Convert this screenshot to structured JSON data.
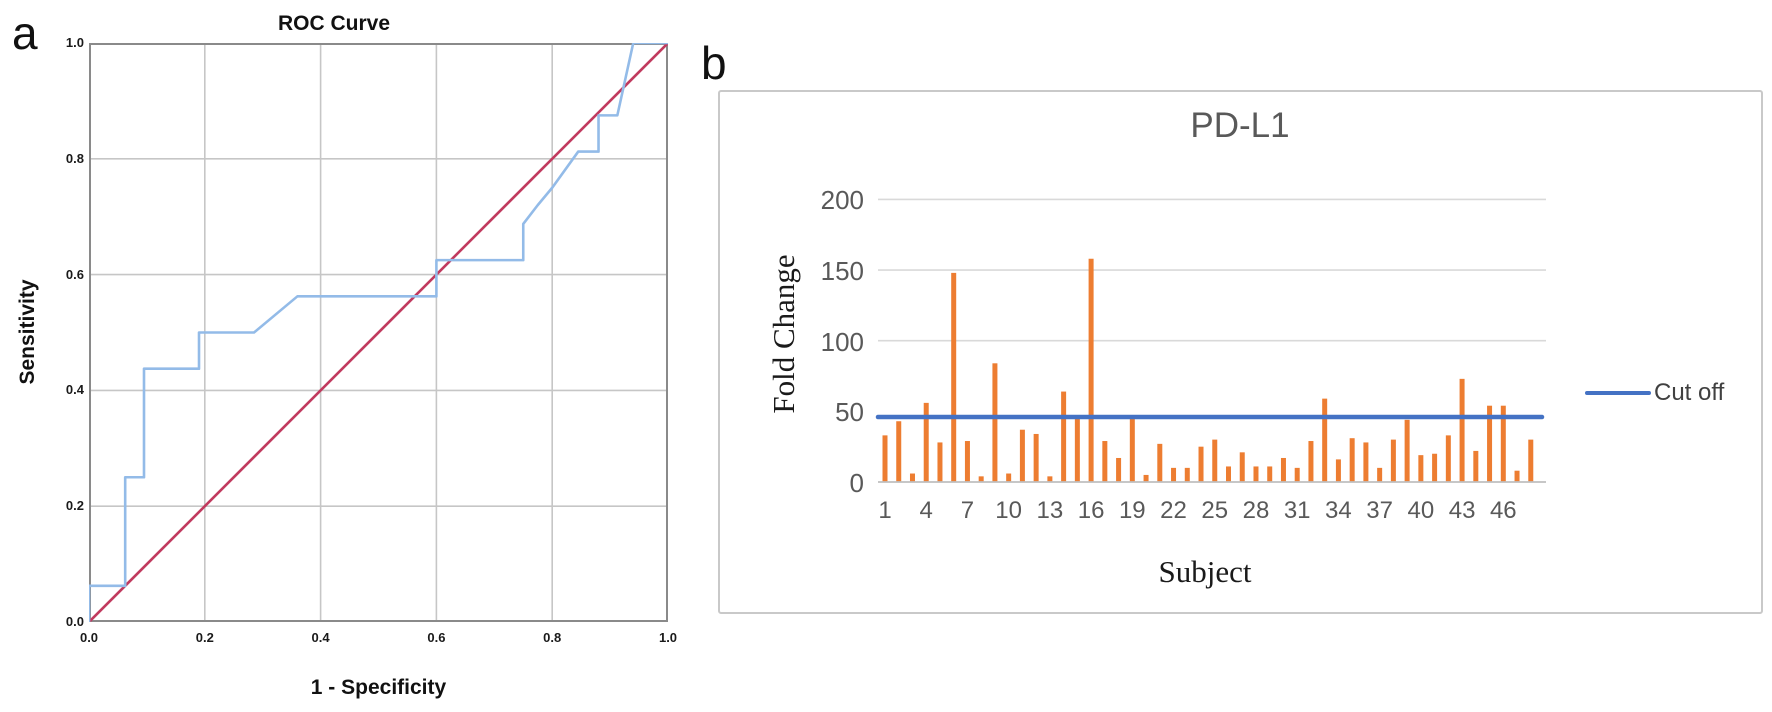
{
  "panel_a": {
    "label": "a",
    "title": "ROC Curve",
    "xlabel": "1 - Specificity",
    "ylabel": "Sensitivity",
    "x_ticks": [
      "0.0",
      "0.2",
      "0.4",
      "0.6",
      "0.8",
      "1.0"
    ],
    "y_ticks": [
      "0.0",
      "0.2",
      "0.4",
      "0.6",
      "0.8",
      "1.0"
    ],
    "colors": {
      "curve": "#93BBE8",
      "diagonal": "#C13A5E",
      "grid": "#c6c6c6",
      "border": "#8a8a8a"
    }
  },
  "panel_b": {
    "label": "b",
    "title": "PD-L1",
    "xlabel": "Subject",
    "ylabel": "Fold Change",
    "y_ticks": [
      "200",
      "150",
      "100",
      "50",
      "0"
    ],
    "x_ticks": [
      "1",
      "4",
      "7",
      "10",
      "13",
      "16",
      "19",
      "22",
      "25",
      "28",
      "31",
      "34",
      "37",
      "40",
      "43",
      "46"
    ],
    "legend_label": "Cut off",
    "colors": {
      "bar": "#ED7D31",
      "cutoff": "#4472C4",
      "grid": "#d9d9d9",
      "axis": "#bfbfbf"
    }
  },
  "chart_data": [
    {
      "type": "line",
      "title": "ROC Curve",
      "xlabel": "1 - Specificity",
      "ylabel": "Sensitivity",
      "xlim": [
        0,
        1
      ],
      "ylim": [
        0,
        1
      ],
      "x_ticks": [
        0.0,
        0.2,
        0.4,
        0.6,
        0.8,
        1.0
      ],
      "y_ticks": [
        0.0,
        0.2,
        0.4,
        0.6,
        0.8,
        1.0
      ],
      "grid": true,
      "series": [
        {
          "name": "ROC curve",
          "color": "#93BBE8",
          "points": [
            [
              0,
              0
            ],
            [
              0,
              0.0625
            ],
            [
              0.0625,
              0.0625
            ],
            [
              0.0625,
              0.25
            ],
            [
              0.095,
              0.25
            ],
            [
              0.095,
              0.4375
            ],
            [
              0.19,
              0.4375
            ],
            [
              0.19,
              0.5
            ],
            [
              0.285,
              0.5
            ],
            [
              0.36,
              0.5625
            ],
            [
              0.6,
              0.5625
            ],
            [
              0.6,
              0.625
            ],
            [
              0.75,
              0.625
            ],
            [
              0.75,
              0.6875
            ],
            [
              0.775,
              0.72
            ],
            [
              0.8,
              0.75
            ],
            [
              0.845,
              0.8125
            ],
            [
              0.88,
              0.8125
            ],
            [
              0.88,
              0.875
            ],
            [
              0.9125,
              0.875
            ],
            [
              0.94,
              1.0
            ],
            [
              1.0,
              1.0
            ]
          ]
        },
        {
          "name": "reference diagonal",
          "color": "#C13A5E",
          "points": [
            [
              0,
              0
            ],
            [
              1,
              1
            ]
          ]
        }
      ]
    },
    {
      "type": "bar",
      "title": "PD-L1",
      "xlabel": "Subject",
      "ylabel": "Fold Change",
      "ylim": [
        0,
        200
      ],
      "y_ticks": [
        0,
        50,
        100,
        150,
        200
      ],
      "x_tick_labels": [
        "1",
        "4",
        "7",
        "10",
        "13",
        "16",
        "19",
        "22",
        "25",
        "28",
        "31",
        "34",
        "37",
        "40",
        "43",
        "46"
      ],
      "categories": [
        1,
        2,
        3,
        4,
        5,
        6,
        7,
        8,
        9,
        10,
        11,
        12,
        13,
        14,
        15,
        16,
        17,
        18,
        19,
        20,
        21,
        22,
        23,
        24,
        25,
        26,
        27,
        28,
        29,
        30,
        31,
        32,
        33,
        34,
        35,
        36,
        37,
        38,
        39,
        40,
        41,
        42,
        43,
        44,
        45,
        46,
        47,
        48
      ],
      "values": [
        33,
        43,
        6,
        56,
        28,
        148,
        29,
        4,
        84,
        6,
        37,
        34,
        4,
        64,
        45,
        158,
        29,
        17,
        45,
        5,
        27,
        10,
        10,
        25,
        30,
        11,
        21,
        11,
        11,
        17,
        10,
        29,
        59,
        16,
        31,
        28,
        10,
        30,
        44,
        19,
        20,
        33,
        73,
        22,
        54,
        54,
        8,
        30
      ],
      "bar_color": "#ED7D31",
      "cutoff": {
        "label": "Cut off",
        "value": 46,
        "color": "#4472C4"
      },
      "legend_position": "right"
    }
  ]
}
